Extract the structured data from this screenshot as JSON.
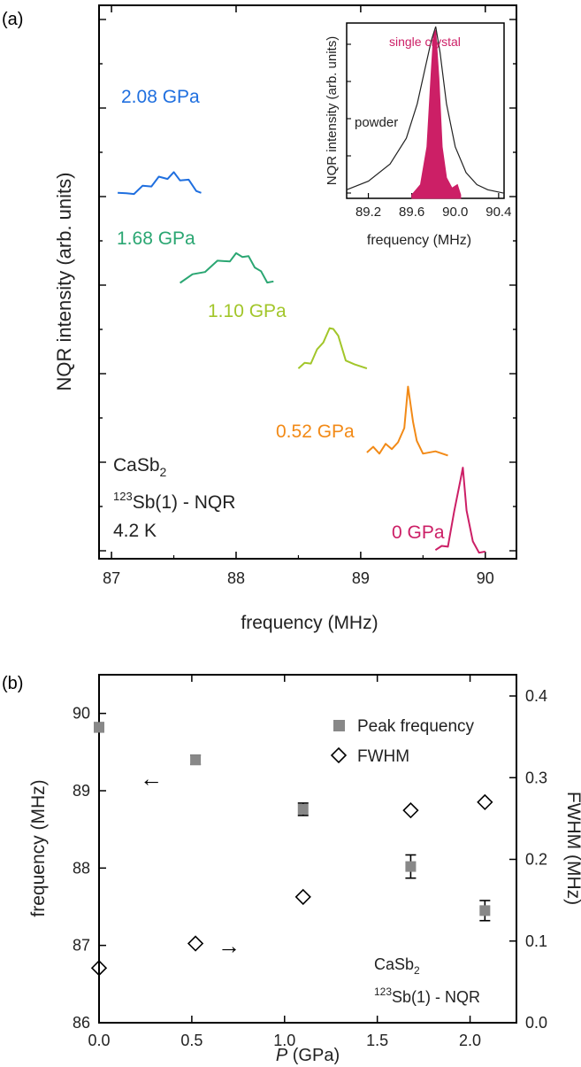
{
  "chart_data": [
    {
      "type": "line",
      "panel_label": "(a)",
      "xlabel": "frequency (MHz)",
      "ylabel": "NQR intensity (arb. units)",
      "xlim": [
        86.9,
        90.25
      ],
      "xticks": [
        "87",
        "88",
        "89",
        "90"
      ],
      "annotation": {
        "compound": "CaSb",
        "compound_sub": "2",
        "iso_sup": "123",
        "method": "Sb(1) - NQR",
        "temperature": "4.2 K"
      },
      "series": [
        {
          "name": "2.08 GPa",
          "color": "#1f6fdf",
          "offset": 4,
          "x": [
            87.05,
            87.12,
            87.18,
            87.25,
            87.32,
            87.38,
            87.45,
            87.5,
            87.55,
            87.62,
            87.68,
            87.72
          ],
          "y": [
            0.3,
            0.2,
            0.35,
            0.45,
            0.6,
            0.75,
            0.85,
            0.9,
            0.8,
            0.65,
            0.45,
            0.3
          ]
        },
        {
          "name": "1.68 GPa",
          "color": "#2aa672",
          "offset": 3,
          "x": [
            87.55,
            87.65,
            87.75,
            87.85,
            87.95,
            88.0,
            88.05,
            88.1,
            88.15,
            88.2,
            88.25,
            88.3
          ],
          "y": [
            0.25,
            0.45,
            0.7,
            0.9,
            1.05,
            1.15,
            1.2,
            1.05,
            0.85,
            0.55,
            0.35,
            0.3
          ]
        },
        {
          "name": "1.10 GPa",
          "color": "#a2c62a",
          "offset": 2,
          "x": [
            88.5,
            88.55,
            88.6,
            88.65,
            88.7,
            88.75,
            88.78,
            88.82,
            88.88,
            88.95,
            89.05
          ],
          "y": [
            0.35,
            0.45,
            0.6,
            0.9,
            1.3,
            1.6,
            1.75,
            1.35,
            0.7,
            0.4,
            0.35
          ]
        },
        {
          "name": "0.52 GPa",
          "color": "#f28a17",
          "offset": 1,
          "x": [
            89.05,
            89.1,
            89.15,
            89.2,
            89.25,
            89.3,
            89.35,
            89.38,
            89.42,
            89.45,
            89.5,
            89.6,
            89.7
          ],
          "y": [
            0.5,
            0.6,
            0.55,
            0.7,
            0.7,
            0.75,
            1.4,
            2.6,
            1.6,
            0.8,
            0.55,
            0.45,
            0.4
          ]
        },
        {
          "name": "0 GPa",
          "color": "#cc1f66",
          "offset": 0,
          "x": [
            89.6,
            89.65,
            89.7,
            89.75,
            89.8,
            89.82,
            89.85,
            89.9,
            89.95,
            90.0
          ],
          "y": [
            0.2,
            0.25,
            0.4,
            1.4,
            2.6,
            2.85,
            1.6,
            0.4,
            0.2,
            0.15
          ]
        }
      ],
      "inset": {
        "xlabel": "frequency (MHz)",
        "ylabel": "NQR intensity (arb. units)",
        "xlim": [
          89.0,
          90.45
        ],
        "xticks": [
          "89.2",
          "89.6",
          "90.0",
          "90.4"
        ],
        "series": [
          {
            "name": "powder",
            "color": "#222222",
            "x": [
              89.0,
              89.2,
              89.4,
              89.55,
              89.65,
              89.72,
              89.78,
              89.82,
              89.86,
              89.92,
              90.0,
              90.1,
              90.2,
              90.3,
              90.45
            ],
            "y": [
              0.05,
              0.1,
              0.2,
              0.35,
              0.55,
              0.75,
              0.92,
              1.0,
              0.85,
              0.55,
              0.3,
              0.15,
              0.08,
              0.05,
              0.03
            ]
          },
          {
            "name": "single crystal",
            "color": "#cc1f66",
            "x": [
              89.6,
              89.68,
              89.74,
              89.78,
              89.8,
              89.82,
              89.85,
              89.88,
              89.92,
              89.97,
              90.02,
              90.05
            ],
            "y": [
              0.02,
              0.08,
              0.3,
              0.75,
              0.95,
              0.98,
              0.7,
              0.3,
              0.12,
              0.06,
              0.08,
              0.02
            ]
          }
        ]
      }
    },
    {
      "type": "scatter",
      "panel_label": "(b)",
      "xlabel_italic": "P",
      "xlabel_unit": " (GPa)",
      "ylabel": "frequency (MHz)",
      "ylabel_right": "FWHM (MHz)",
      "xlim": [
        0.0,
        2.25
      ],
      "ylim": [
        86,
        90.5
      ],
      "ylim_right": [
        0.0,
        0.4
      ],
      "xticks": [
        "0.0",
        "0.5",
        "1.0",
        "1.5",
        "2.0"
      ],
      "yticks": [
        "86",
        "87",
        "88",
        "89",
        "90"
      ],
      "yticks_right": [
        "0.0",
        "0.1",
        "0.2",
        "0.3",
        "0.4"
      ],
      "annotation": {
        "compound": "CaSb",
        "compound_sub": "2",
        "iso_sup": "123",
        "method": "Sb(1) - NQR"
      },
      "series": [
        {
          "name": "Peak frequency",
          "axis": "left",
          "marker": "square",
          "color": "#888888",
          "x": [
            0.0,
            0.52,
            1.1,
            1.68,
            2.08
          ],
          "y": [
            89.82,
            89.4,
            88.76,
            88.02,
            87.45
          ],
          "err": [
            0.06,
            0.06,
            0.08,
            0.15,
            0.13
          ]
        },
        {
          "name": "FWHM",
          "axis": "right",
          "marker": "diamond",
          "color": "#000000",
          "x": [
            0.0,
            0.52,
            1.1,
            1.68,
            2.08
          ],
          "y": [
            0.067,
            0.097,
            0.154,
            0.26,
            0.27
          ]
        }
      ],
      "arrows": [
        {
          "direction": "left",
          "glyph": "←"
        },
        {
          "direction": "right",
          "glyph": "→"
        }
      ]
    }
  ]
}
